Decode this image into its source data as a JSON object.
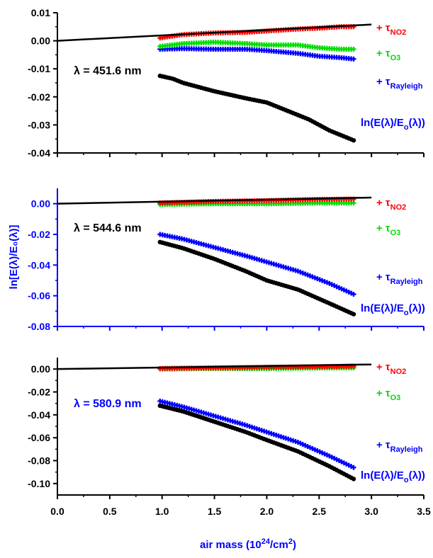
{
  "chart_data": {
    "type": "scatter",
    "x_axis": {
      "label_main": "air mass (10",
      "label_sup": "24",
      "label_tail": "/cm",
      "label_sup2": "2",
      "label_end": ")",
      "xlim": [
        0.0,
        3.5
      ],
      "ticks": [
        "0.0",
        "0.5",
        "1.0",
        "1.5",
        "2.0",
        "2.5",
        "3.0",
        "3.5"
      ]
    },
    "y_axis_label": "ln[E(λ)/E₀(λ)]",
    "colors": {
      "no2": "#ff0000",
      "o3": "#00dd00",
      "rayleigh": "#0000ff",
      "total": "#000000",
      "fit": "#000000",
      "mid_axis": "#0000ff"
    },
    "legend": {
      "plus": "+",
      "tau": "τ",
      "no2_sub": "NO2",
      "o3_sub": "O3",
      "rayleigh_sub": "Rayleigh",
      "total_text_a": "ln(E(λ)/E",
      "total_sub": "o",
      "total_text_b": "(λ))"
    },
    "panels": [
      {
        "lambda_label": "λ = 451.6 nm",
        "ylim": [
          -0.04,
          0.01
        ],
        "y_ticks": [
          "0.01",
          "0.00",
          "-0.01",
          "-0.02",
          "-0.03",
          "-0.04"
        ],
        "fit_line": {
          "x": [
            0.0,
            3.0
          ],
          "y": [
            0.0,
            0.0058
          ]
        },
        "series": [
          {
            "key": "no2",
            "x": [
              0.98,
              1.2,
              1.5,
              1.8,
              2.0,
              2.3,
              2.5,
              2.7,
              2.83
            ],
            "y": [
              0.001,
              0.0022,
              0.0028,
              0.003,
              0.0035,
              0.0042,
              0.0045,
              0.005,
              0.005
            ]
          },
          {
            "key": "o3",
            "x": [
              0.98,
              1.2,
              1.5,
              1.8,
              2.0,
              2.3,
              2.5,
              2.7,
              2.83
            ],
            "y": [
              -0.002,
              -0.001,
              -0.0005,
              -0.001,
              -0.0015,
              -0.0015,
              -0.0025,
              -0.003,
              -0.003
            ]
          },
          {
            "key": "rayleigh",
            "x": [
              0.98,
              1.2,
              1.5,
              1.8,
              2.0,
              2.3,
              2.5,
              2.7,
              2.83
            ],
            "y": [
              -0.003,
              -0.0028,
              -0.003,
              -0.003,
              -0.0035,
              -0.0045,
              -0.0055,
              -0.006,
              -0.0065
            ]
          },
          {
            "key": "total",
            "x": [
              0.98,
              1.1,
              1.2,
              1.5,
              1.8,
              2.0,
              2.2,
              2.4,
              2.6,
              2.83
            ],
            "y": [
              -0.0125,
              -0.0135,
              -0.015,
              -0.018,
              -0.0205,
              -0.022,
              -0.025,
              -0.028,
              -0.032,
              -0.0355
            ]
          }
        ]
      },
      {
        "lambda_label": "λ = 544.6 nm",
        "ylim": [
          -0.08,
          0.01
        ],
        "y_ticks": [
          "0.00",
          "-0.02",
          "-0.04",
          "-0.06",
          "-0.08"
        ],
        "fit_line": {
          "x": [
            0.0,
            3.0
          ],
          "y": [
            0.0,
            0.004
          ]
        },
        "series": [
          {
            "key": "no2",
            "x": [
              0.98,
              1.5,
              2.0,
              2.5,
              2.83
            ],
            "y": [
              0.0005,
              0.0015,
              0.002,
              0.0028,
              0.003
            ]
          },
          {
            "key": "o3",
            "x": [
              0.98,
              1.5,
              2.0,
              2.5,
              2.83
            ],
            "y": [
              -0.0005,
              0.0,
              0.0,
              0.0005,
              0.0005
            ]
          },
          {
            "key": "rayleigh",
            "x": [
              0.98,
              1.2,
              1.5,
              1.8,
              2.0,
              2.3,
              2.6,
              2.83
            ],
            "y": [
              -0.02,
              -0.023,
              -0.0285,
              -0.034,
              -0.038,
              -0.044,
              -0.052,
              -0.059
            ]
          },
          {
            "key": "total",
            "x": [
              0.98,
              1.2,
              1.5,
              1.8,
              2.0,
              2.3,
              2.6,
              2.83
            ],
            "y": [
              -0.025,
              -0.029,
              -0.036,
              -0.044,
              -0.05,
              -0.056,
              -0.065,
              -0.072
            ]
          }
        ]
      },
      {
        "lambda_label": "λ = 580.9 nm",
        "ylim": [
          -0.11,
          0.01
        ],
        "y_ticks": [
          "0.00",
          "-0.02",
          "-0.04",
          "-0.06",
          "-0.08",
          "-0.10"
        ],
        "fit_line": {
          "x": [
            0.0,
            3.0
          ],
          "y": [
            0.0,
            0.004
          ]
        },
        "series": [
          {
            "key": "no2",
            "x": [
              0.98,
              1.5,
              2.0,
              2.5,
              2.83
            ],
            "y": [
              0.0005,
              0.001,
              0.0015,
              0.002,
              0.0025
            ]
          },
          {
            "key": "o3",
            "x": [
              0.98,
              1.5,
              2.0,
              2.5,
              2.83
            ],
            "y": [
              0.0,
              0.0005,
              0.0005,
              0.001,
              0.001
            ]
          },
          {
            "key": "rayleigh",
            "x": [
              0.98,
              1.2,
              1.5,
              1.8,
              2.0,
              2.3,
              2.6,
              2.83
            ],
            "y": [
              -0.028,
              -0.033,
              -0.041,
              -0.049,
              -0.055,
              -0.064,
              -0.076,
              -0.086
            ]
          },
          {
            "key": "total",
            "x": [
              0.98,
              1.2,
              1.5,
              1.8,
              2.0,
              2.3,
              2.6,
              2.83
            ],
            "y": [
              -0.032,
              -0.037,
              -0.046,
              -0.055,
              -0.062,
              -0.072,
              -0.085,
              -0.096
            ]
          }
        ]
      }
    ]
  }
}
